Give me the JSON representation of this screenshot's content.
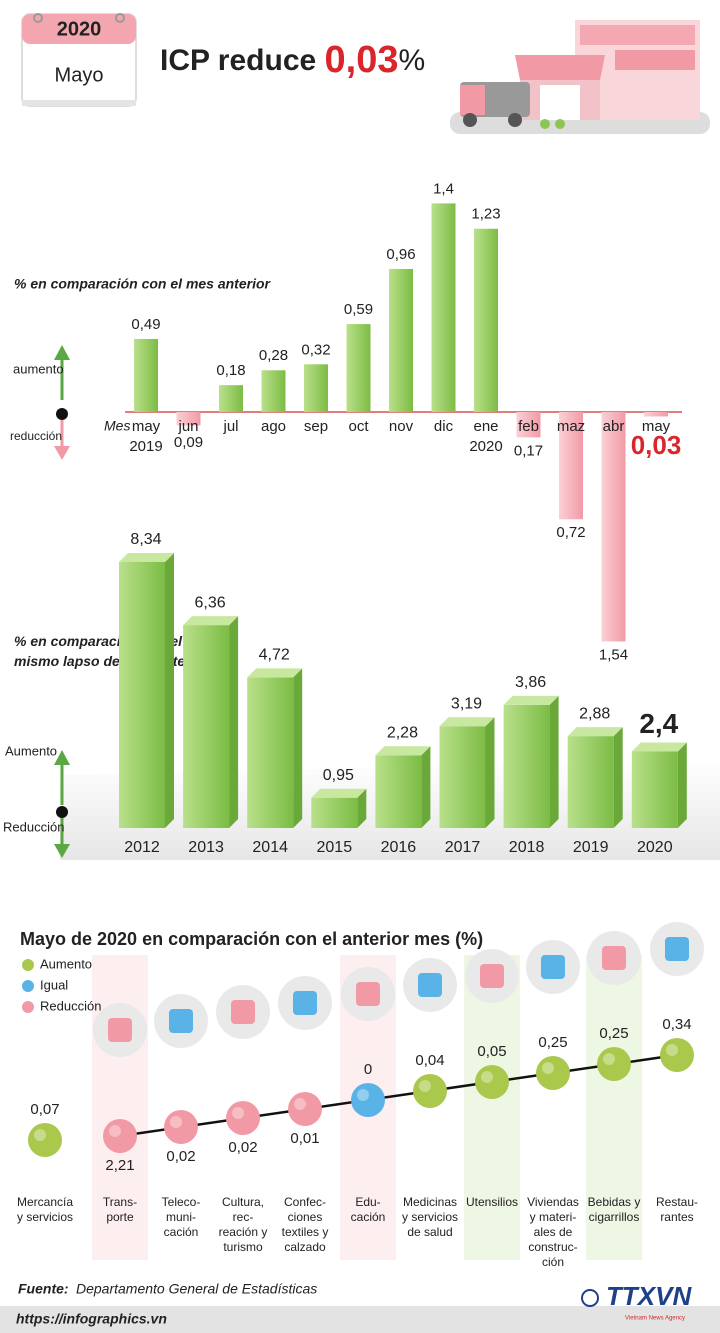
{
  "header": {
    "year": "2020",
    "month": "Mayo",
    "title": "ICP reduce ",
    "title_value": "0,03",
    "title_unit": "%"
  },
  "chart_data": [
    {
      "type": "bar",
      "subtitle": "% en comparación con el mes anterior",
      "x_label": "Mes",
      "up_label": "aumento",
      "down_label": "reducción",
      "categories": [
        "may\n2019",
        "jun",
        "jul",
        "ago",
        "sep",
        "oct",
        "nov",
        "dic",
        "ene\n2020",
        "feb",
        "maz",
        "abr",
        "may"
      ],
      "values": [
        0.49,
        -0.09,
        0.18,
        0.28,
        0.32,
        0.59,
        0.96,
        1.4,
        1.23,
        -0.17,
        -0.72,
        -1.54,
        -0.03
      ],
      "value_labels": [
        "0,49",
        "0,09",
        "0,18",
        "0,28",
        "0,32",
        "0,59",
        "0,96",
        "1,4",
        "1,23",
        "0,17",
        "0,72",
        "1,54",
        "0,03"
      ],
      "colors": {
        "positive": "#8cc653",
        "negative": "#f5a3ad",
        "highlight": "#d9262c"
      }
    },
    {
      "type": "bar3d",
      "subtitle": "% en comparación con el\nmismo lapso del año anterior",
      "up_label": "Aumento",
      "down_label": "Reducción",
      "categories": [
        "2012",
        "2013",
        "2014",
        "2015",
        "2016",
        "2017",
        "2018",
        "2019",
        "2020"
      ],
      "values": [
        8.34,
        6.36,
        4.72,
        0.95,
        2.28,
        3.19,
        3.86,
        2.88,
        2.4
      ],
      "value_labels": [
        "8,34",
        "6,36",
        "4,72",
        "0,95",
        "2,28",
        "3,19",
        "3,86",
        "2,88",
        "2,4"
      ],
      "color": "#8cc653"
    },
    {
      "type": "dots",
      "title": "Mayo de 2020 en comparación con el anterior mes (%)",
      "legend": [
        {
          "name": "Aumento",
          "color": "#a9c84c"
        },
        {
          "name": "Igual",
          "color": "#5ab3e6"
        },
        {
          "name": "Reducción",
          "color": "#f19aa6"
        }
      ],
      "categories": [
        "Mercancía\ny servicios",
        "Trans-\nporte",
        "Teleco-\nmuni-\ncación",
        "Cultura,\nrec-\nreación y\nturismo",
        "Confec-\nciones\ntextiles y\ncalzado",
        "Edu-\ncación",
        "Medicinas\ny servicios\nde salud",
        "Utensilios",
        "Viviendas\ny materi-\nales de\nconstruc-\nción",
        "Bebidas y\ncigarrillos",
        "Restau-\nrantes"
      ],
      "values": [
        0.07,
        -2.21,
        -0.02,
        -0.02,
        -0.01,
        0,
        0.04,
        0.05,
        0.25,
        0.25,
        0.34
      ],
      "value_labels": [
        "0,07",
        "2,21",
        "0,02",
        "0,02",
        "0,01",
        "0",
        "0,04",
        "0,05",
        "0,25",
        "0,25",
        "0,34"
      ]
    }
  ],
  "footer": {
    "source_label": "Fuente:",
    "source": "Departamento General de Estadísticas",
    "url": "https://infographics.vn",
    "logo": "TTXVN",
    "logo_sub": "Vietnam News Agency"
  }
}
